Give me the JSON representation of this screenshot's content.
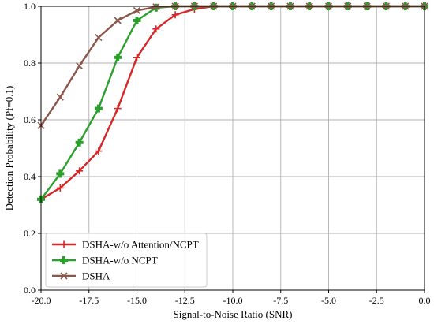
{
  "chart_data": {
    "type": "line",
    "title": "",
    "xlabel": "Signal-to-Noise Ratio (SNR)",
    "ylabel": "Detection Probability (Pf=0.1)",
    "xlim": [
      -20,
      0
    ],
    "ylim": [
      0,
      1.0
    ],
    "xticks": [
      -20,
      -17.5,
      -15,
      -12.5,
      -10,
      -7.5,
      -5,
      -2.5,
      0
    ],
    "xtick_labels": [
      "-20.0",
      "-17.5",
      "-15.0",
      "-12.5",
      "-10.0",
      "-7.5",
      "-5.0",
      "-2.5",
      "0.0"
    ],
    "yticks": [
      0,
      0.2,
      0.4,
      0.6,
      0.8,
      1.0
    ],
    "ytick_labels": [
      "0.0",
      "0.2",
      "0.4",
      "0.6",
      "0.8",
      "1.0"
    ],
    "grid": true,
    "legend_position": "lower-left",
    "x": [
      -20,
      -19,
      -18,
      -17,
      -16,
      -15,
      -14,
      -13,
      -12,
      -11,
      -10,
      -9,
      -8,
      -7,
      -6,
      -5,
      -4,
      -3,
      -2,
      -1,
      0
    ],
    "series": [
      {
        "name": "DSHA-w/o Attention/NCPT",
        "color": "#d62728",
        "marker": "plus",
        "values": [
          0.32,
          0.36,
          0.42,
          0.49,
          0.64,
          0.82,
          0.92,
          0.97,
          0.99,
          1.0,
          1.0,
          1.0,
          1.0,
          1.0,
          1.0,
          1.0,
          1.0,
          1.0,
          1.0,
          1.0,
          1.0
        ]
      },
      {
        "name": "DSHA-w/o NCPT",
        "color": "#2ca02c",
        "marker": "bold-plus",
        "values": [
          0.32,
          0.41,
          0.52,
          0.64,
          0.82,
          0.95,
          0.995,
          1.0,
          1.0,
          1.0,
          1.0,
          1.0,
          1.0,
          1.0,
          1.0,
          1.0,
          1.0,
          1.0,
          1.0,
          1.0,
          1.0
        ]
      },
      {
        "name": "DSHA",
        "color": "#8c564b",
        "marker": "x",
        "values": [
          0.58,
          0.68,
          0.79,
          0.89,
          0.95,
          0.985,
          0.998,
          1.0,
          1.0,
          1.0,
          1.0,
          1.0,
          1.0,
          1.0,
          1.0,
          1.0,
          1.0,
          1.0,
          1.0,
          1.0,
          1.0
        ]
      }
    ]
  }
}
